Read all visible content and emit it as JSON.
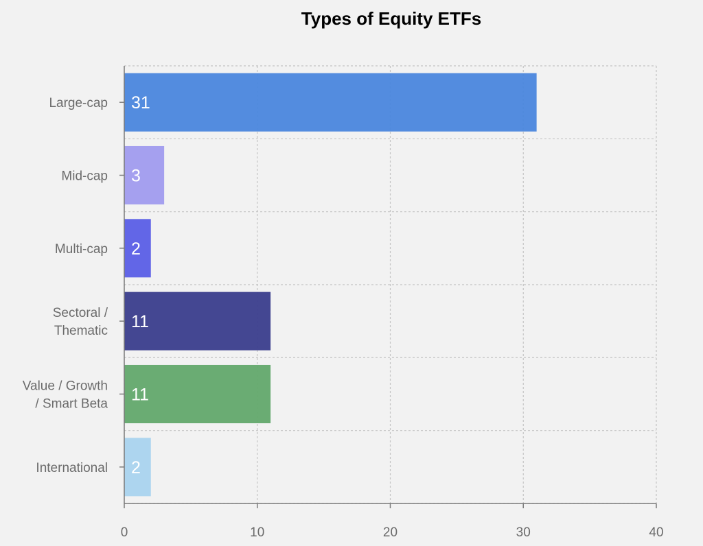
{
  "chart_data": {
    "type": "bar",
    "orientation": "horizontal",
    "title": "Types of Equity ETFs",
    "categories": [
      [
        "Large-cap"
      ],
      [
        "Mid-cap"
      ],
      [
        "Multi-cap"
      ],
      [
        "Sectoral /",
        "Thematic"
      ],
      [
        "Value / Growth",
        "/ Smart Beta"
      ],
      [
        "International"
      ]
    ],
    "values": [
      31,
      3,
      2,
      11,
      11,
      2
    ],
    "colors": [
      "#4a86dd",
      "#a09bee",
      "#5a5ee6",
      "#3a3d8c",
      "#62a86c",
      "#a9d3ee"
    ],
    "xlim": [
      0,
      40
    ],
    "xticks": [
      0,
      10,
      20,
      30,
      40
    ],
    "grid": true,
    "data_labels": true
  }
}
